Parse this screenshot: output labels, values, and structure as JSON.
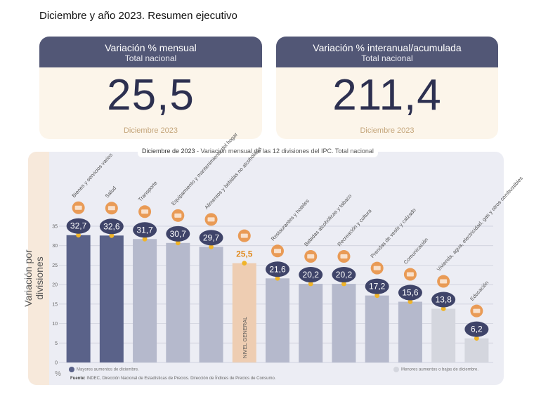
{
  "page_title": "Diciembre y año 2023. Resumen ejecutivo",
  "cards": [
    {
      "title": "Variación % mensual",
      "subtitle": "Total nacional",
      "value": "25,5",
      "footer": "Diciembre 2023"
    },
    {
      "title": "Variación % interanual/acumulada",
      "subtitle": "Total nacional",
      "value": "211,4",
      "footer": "Diciembre 2023"
    }
  ],
  "chart_header": {
    "prefix": "Diciembre de 2023",
    "rest": " - Variación mensual de las 12 divisiones del IPC. Total nacional"
  },
  "legend": {
    "high": "Mayores aumentos de diciembre.",
    "low": "Menores aumentos o bajas de diciembre."
  },
  "unit": "%",
  "source": {
    "label": "Fuente:",
    "text": " INDEC, Dirección Nacional de Estadísticas de Precios. Dirección de Índices de Precios de Consumo."
  },
  "colors": {
    "high": "#5a6289",
    "mid": "#b5b9cc",
    "low": "#d4d6de",
    "general": "#eecdb2",
    "dot": "#f0b429",
    "bubble": "#3f4469",
    "general_text": "#e08a1e"
  },
  "chart_data": {
    "type": "bar",
    "ylabel": "Variación por divisiones",
    "ylim": [
      0,
      35
    ],
    "yticks": [
      0,
      5,
      10,
      15,
      20,
      25,
      30,
      35
    ],
    "grid": true,
    "categories": [
      "Bienes y servicios varios",
      "Salud",
      "Transporte",
      "Equipamiento y mantenimiento del hogar",
      "Alimentos y bebidas no alcohólicas",
      "NIVEL GENERAL",
      "Restaurantes y hoteles",
      "Bebidas alcohólicas y tabaco",
      "Recreación y cultura",
      "Prendas de vestir y calzado",
      "Comunicación",
      "Vivienda, agua, electricidad, gas y otros combustibles",
      "Educación"
    ],
    "values": [
      32.7,
      32.6,
      31.7,
      30.7,
      29.7,
      25.5,
      21.6,
      20.2,
      20.2,
      17.2,
      15.6,
      13.8,
      6.2
    ],
    "labels": [
      "32,7",
      "32,6",
      "31,7",
      "30,7",
      "29,7",
      "25,5",
      "21,6",
      "20,2",
      "20,2",
      "17,2",
      "15,6",
      "13,8",
      "6,2"
    ],
    "groups": [
      "high",
      "high",
      "mid",
      "mid",
      "mid",
      "general",
      "mid",
      "mid",
      "mid",
      "mid",
      "mid",
      "low",
      "low"
    ],
    "icons": [
      "scissors-icon",
      "first-aid-icon",
      "bus-icon",
      "paint-bucket-icon",
      "chicken-icon",
      "grocery-basket-icon",
      "dining-icon",
      "bottle-icon",
      "sun-icon",
      "shirt-icon",
      "phone-icon",
      "lightbulb-icon",
      "book-icon"
    ]
  }
}
